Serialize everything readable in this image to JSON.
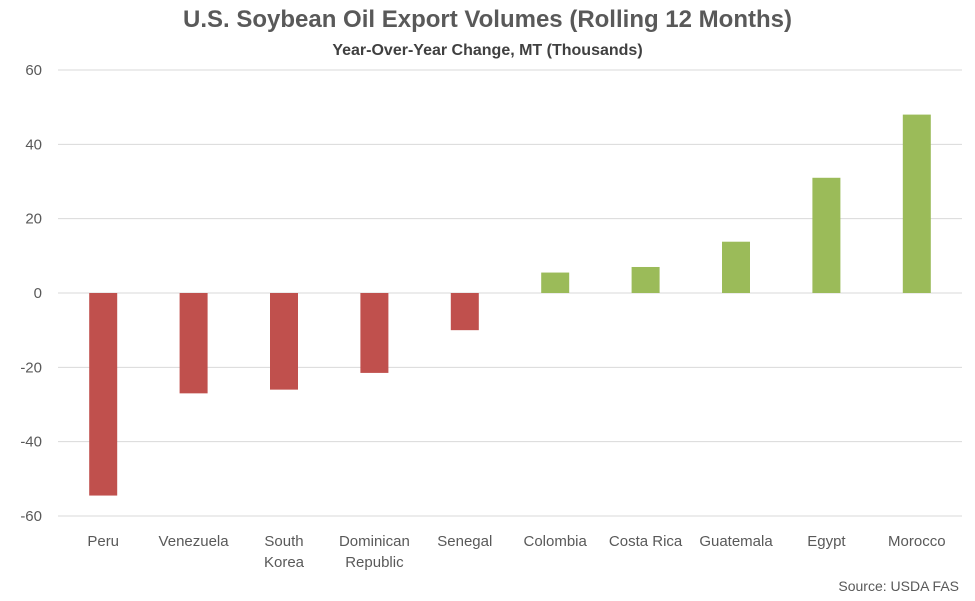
{
  "chart_data": {
    "type": "bar",
    "title": "U.S. Soybean Oil Export Volumes (Rolling 12 Months)",
    "subtitle": "Year-Over-Year Change, MT (Thousands)",
    "source": "Source: USDA FAS",
    "categories": [
      [
        "Peru"
      ],
      [
        "Venezuela"
      ],
      [
        "South",
        "Korea"
      ],
      [
        "Dominican",
        "Republic"
      ],
      [
        "Senegal"
      ],
      [
        "Colombia"
      ],
      [
        "Costa Rica"
      ],
      [
        "Guatemala"
      ],
      [
        "Egypt"
      ],
      [
        "Morocco"
      ]
    ],
    "values": [
      -54.5,
      -27,
      -26,
      -21.5,
      -10,
      5.5,
      7,
      13.8,
      31,
      48
    ],
    "ylim": [
      -60,
      60
    ],
    "yticks": [
      60,
      40,
      20,
      0,
      -20,
      -40,
      -60
    ],
    "grid": true,
    "colors": {
      "negative": "#c0504d",
      "positive": "#9bbb59",
      "grid": "#d9d9d9",
      "text": "#595959"
    }
  }
}
